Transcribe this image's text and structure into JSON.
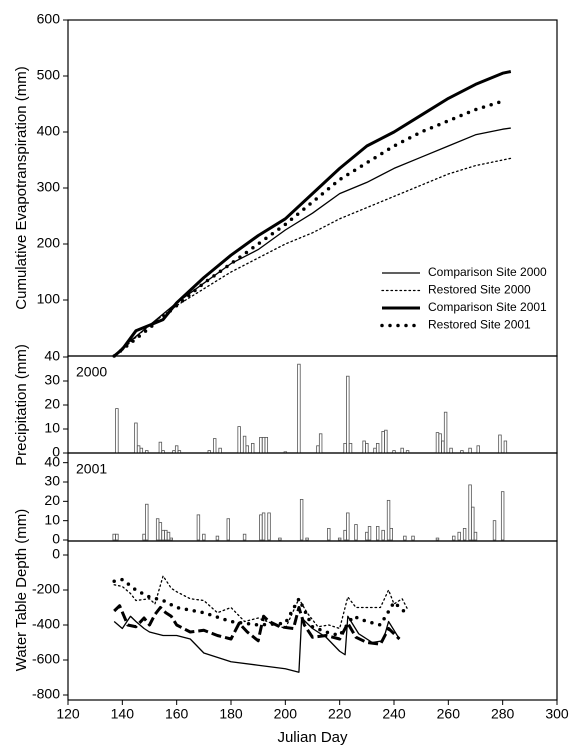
{
  "chart_data": [
    {
      "type": "line",
      "ylabel": "Cumulative Evapotranspiration (mm)",
      "xlim": [
        120,
        300
      ],
      "ylim": [
        0,
        600
      ],
      "yticks": [
        100,
        200,
        300,
        400,
        500,
        600
      ],
      "legend": "lower-right",
      "series": [
        {
          "name": "Comparison Site 2000",
          "color": "#000000",
          "style": "solid",
          "weight": "thin",
          "x": [
            137,
            140,
            150,
            160,
            170,
            180,
            190,
            200,
            210,
            220,
            230,
            240,
            250,
            260,
            270,
            280,
            283
          ],
          "values": [
            0,
            15,
            55,
            95,
            130,
            165,
            190,
            225,
            255,
            290,
            310,
            335,
            355,
            375,
            395,
            405,
            407
          ]
        },
        {
          "name": "Restored Site 2000",
          "color": "#000000",
          "style": "dotted",
          "weight": "thin",
          "x": [
            137,
            140,
            150,
            160,
            170,
            180,
            190,
            200,
            210,
            220,
            230,
            240,
            250,
            260,
            270,
            280,
            283
          ],
          "values": [
            0,
            12,
            55,
            90,
            120,
            150,
            175,
            200,
            220,
            245,
            265,
            285,
            305,
            325,
            340,
            350,
            353
          ]
        },
        {
          "name": "Comparison Site 2001",
          "color": "#000000",
          "style": "solid",
          "weight": "thick",
          "x": [
            137,
            140,
            145,
            150,
            155,
            160,
            170,
            180,
            190,
            200,
            210,
            220,
            230,
            240,
            250,
            260,
            270,
            280,
            283
          ],
          "values": [
            0,
            12,
            45,
            55,
            65,
            95,
            140,
            180,
            215,
            245,
            290,
            335,
            375,
            400,
            430,
            460,
            485,
            505,
            508
          ]
        },
        {
          "name": "Restored Site 2001",
          "color": "#000000",
          "style": "dotted",
          "weight": "thick",
          "x": [
            137,
            150,
            160,
            170,
            180,
            190,
            200,
            210,
            220,
            230,
            240,
            250,
            260,
            270,
            280
          ],
          "values": [
            0,
            50,
            90,
            130,
            165,
            200,
            235,
            275,
            315,
            345,
            375,
            400,
            420,
            440,
            455
          ]
        }
      ]
    },
    {
      "type": "bar",
      "label": "2000",
      "ylabel": "Precipitation (mm)",
      "xlim": [
        120,
        300
      ],
      "ylim": [
        0,
        40
      ],
      "yticks": [
        0,
        10,
        20,
        30,
        40
      ],
      "color": "#888888",
      "x": [
        138,
        145,
        146,
        147,
        149,
        154,
        155,
        159,
        160,
        161,
        172,
        174,
        176,
        183,
        185,
        186,
        188,
        191,
        192,
        193,
        200,
        205,
        212,
        213,
        222,
        223,
        224,
        229,
        230,
        233,
        234,
        236,
        237,
        240,
        243,
        245,
        256,
        257,
        258,
        259,
        261,
        265,
        268,
        271,
        279,
        281
      ],
      "values": [
        18.5,
        12.5,
        3,
        2,
        1,
        4.5,
        1,
        1,
        3,
        1,
        1,
        6,
        2,
        11,
        7,
        3,
        4,
        6.5,
        6.5,
        6.5,
        0.5,
        37,
        3,
        8,
        4,
        32,
        4,
        5,
        4,
        2,
        4,
        9,
        9.5,
        1,
        2,
        1,
        8.5,
        8,
        5,
        17,
        2,
        1,
        2,
        3,
        7.5,
        5
      ]
    },
    {
      "type": "bar",
      "label": "2001",
      "xlim": [
        120,
        300
      ],
      "ylim": [
        0,
        45
      ],
      "yticks": [
        0,
        10,
        20,
        30,
        40
      ],
      "color": "#888888",
      "x": [
        137,
        138,
        148,
        149,
        153,
        154,
        155,
        156,
        157,
        158,
        168,
        170,
        175,
        179,
        185,
        191,
        192,
        194,
        198,
        206,
        208,
        216,
        220,
        222,
        223,
        226,
        230,
        231,
        234,
        236,
        238,
        239,
        244,
        247,
        256,
        262,
        264,
        266,
        268,
        269,
        270,
        277,
        280
      ],
      "values": [
        3,
        3,
        3,
        18.5,
        11,
        9,
        5,
        5,
        4,
        1,
        13,
        3,
        2,
        11,
        3,
        13,
        14,
        14,
        1,
        21,
        1,
        6,
        1,
        5,
        14,
        8,
        4,
        7,
        7,
        5,
        20.5,
        6,
        2,
        2,
        1,
        2,
        4,
        6,
        28.5,
        17,
        4,
        10,
        25
      ]
    },
    {
      "type": "line",
      "ylabel": "Water Table Depth (mm)",
      "xlabel": "Julian Day",
      "xlim": [
        120,
        300
      ],
      "xticks": [
        120,
        140,
        160,
        180,
        200,
        220,
        240,
        260,
        280,
        300
      ],
      "ylim": [
        -800,
        0
      ],
      "yticks": [
        -800,
        -600,
        -400,
        -200,
        0
      ],
      "series": [
        {
          "color": "#000000",
          "style": "solid",
          "weight": "thin",
          "x": [
            137,
            140,
            143,
            145,
            148,
            150,
            155,
            160,
            165,
            170,
            180,
            190,
            200,
            205,
            206,
            210,
            215,
            220,
            222,
            223,
            227,
            232,
            236,
            238,
            242
          ],
          "values": [
            -380,
            -420,
            -350,
            -380,
            -420,
            -440,
            -460,
            -460,
            -480,
            -560,
            -610,
            -630,
            -650,
            -670,
            -360,
            -420,
            -470,
            -550,
            -570,
            -350,
            -450,
            -500,
            -490,
            -380,
            -480
          ]
        },
        {
          "color": "#000000",
          "style": "dotted",
          "weight": "thin",
          "x": [
            137,
            140,
            143,
            145,
            150,
            152,
            155,
            158,
            160,
            165,
            170,
            175,
            180,
            185,
            190,
            195,
            200,
            205,
            208,
            212,
            216,
            220,
            223,
            226,
            230,
            235,
            238,
            240,
            243,
            245
          ],
          "values": [
            -170,
            -180,
            -220,
            -260,
            -250,
            -280,
            -120,
            -190,
            -210,
            -250,
            -260,
            -330,
            -300,
            -380,
            -360,
            -390,
            -420,
            -250,
            -330,
            -410,
            -400,
            -420,
            -240,
            -300,
            -300,
            -300,
            -200,
            -280,
            -250,
            -310
          ]
        },
        {
          "color": "#000000",
          "style": "dashed",
          "weight": "thick",
          "x": [
            137,
            139,
            142,
            145,
            148,
            150,
            152,
            154,
            156,
            158,
            160,
            165,
            170,
            175,
            180,
            183,
            186,
            190,
            192,
            194,
            198,
            203,
            205,
            207,
            210,
            215,
            220,
            223,
            226,
            230,
            235,
            238,
            242
          ],
          "values": [
            -320,
            -290,
            -400,
            -410,
            -360,
            -400,
            -340,
            -300,
            -330,
            -350,
            -400,
            -440,
            -430,
            -460,
            -480,
            -390,
            -440,
            -490,
            -350,
            -380,
            -410,
            -420,
            -300,
            -400,
            -470,
            -460,
            -480,
            -390,
            -470,
            -500,
            -510,
            -420,
            -480
          ]
        },
        {
          "color": "#000000",
          "style": "dotted",
          "weight": "thick",
          "x": [
            137,
            140,
            145,
            150,
            155,
            160,
            170,
            180,
            190,
            200,
            205,
            210,
            215,
            220,
            225,
            230,
            235,
            240,
            245
          ],
          "values": [
            -150,
            -140,
            -200,
            -240,
            -260,
            -300,
            -330,
            -380,
            -400,
            -390,
            -250,
            -410,
            -440,
            -460,
            -350,
            -380,
            -400,
            -270,
            -340
          ]
        }
      ]
    }
  ]
}
